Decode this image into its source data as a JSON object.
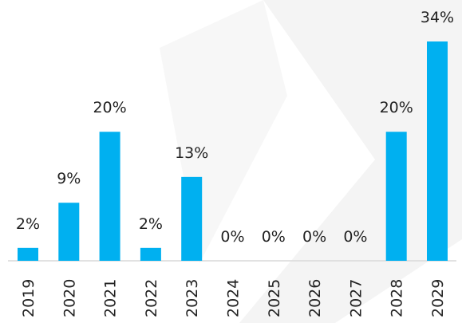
{
  "chart_data": {
    "type": "bar",
    "categories": [
      "2019",
      "2020",
      "2021",
      "2022",
      "2023",
      "2024",
      "2025",
      "2026",
      "2027",
      "2028",
      "2029"
    ],
    "values": [
      2,
      9,
      20,
      2,
      13,
      0,
      0,
      0,
      0,
      20,
      34
    ],
    "value_labels": [
      "2%",
      "9%",
      "20%",
      "2%",
      "13%",
      "0%",
      "0%",
      "0%",
      "0%",
      "20%",
      "34%"
    ],
    "color": "#00b0f0"
  }
}
